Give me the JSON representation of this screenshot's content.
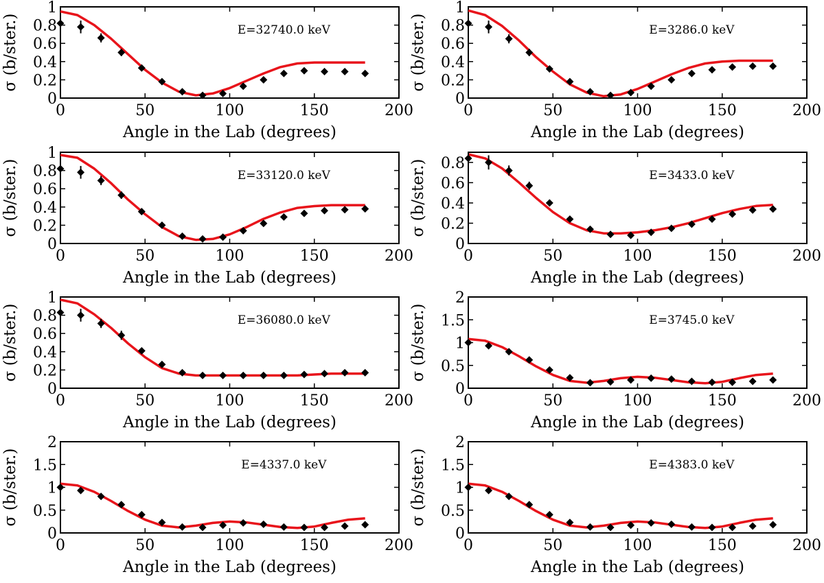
{
  "chart_data": [
    {
      "type": "scatter",
      "title": "E=32740.0 keV",
      "xlabel": "Angle in the Lab (degrees)",
      "ylabel": "σ (b/ster.)",
      "xlim": [
        0,
        200
      ],
      "ylim": [
        0,
        1
      ],
      "xticks": [
        0,
        50,
        100,
        150,
        200
      ],
      "yticks": [
        0,
        0.2,
        0.4,
        0.6,
        0.8,
        1
      ],
      "ytick_labels": [
        "0",
        "0.2",
        "0.4",
        "0.6",
        "0.8",
        "1"
      ],
      "series": [
        {
          "name": "data",
          "x": [
            0,
            12,
            24,
            36,
            48,
            60,
            72,
            84,
            96,
            108,
            120,
            132,
            144,
            156,
            168,
            180
          ],
          "y": [
            0.82,
            0.78,
            0.66,
            0.5,
            0.33,
            0.18,
            0.07,
            0.03,
            0.05,
            0.13,
            0.2,
            0.27,
            0.3,
            0.29,
            0.29,
            0.27
          ],
          "err": [
            0.05,
            0.07,
            0.05,
            0.04,
            0.02,
            0.02,
            0.01,
            0.01,
            0.01,
            0.01,
            0.01,
            0.02,
            0.02,
            0.02,
            0.02,
            0.02
          ]
        },
        {
          "name": "fit",
          "x": [
            0,
            10,
            20,
            30,
            40,
            50,
            60,
            70,
            80,
            90,
            100,
            110,
            120,
            130,
            140,
            150,
            160,
            170,
            180
          ],
          "y": [
            0.95,
            0.91,
            0.8,
            0.65,
            0.48,
            0.31,
            0.17,
            0.07,
            0.03,
            0.05,
            0.11,
            0.19,
            0.27,
            0.34,
            0.38,
            0.39,
            0.39,
            0.39,
            0.39
          ]
        }
      ]
    },
    {
      "type": "scatter",
      "title": "E=3286.0 keV",
      "xlabel": "Angle in the Lab (degrees)",
      "ylabel": "σ (b/ster.)",
      "xlim": [
        0,
        200
      ],
      "ylim": [
        0,
        1
      ],
      "xticks": [
        0,
        50,
        100,
        150,
        200
      ],
      "yticks": [
        0,
        0.2,
        0.4,
        0.6,
        0.8,
        1
      ],
      "ytick_labels": [
        "0",
        "0.2",
        "0.4",
        "0.6",
        "0.8",
        "1"
      ],
      "series": [
        {
          "name": "data",
          "x": [
            0,
            12,
            24,
            36,
            48,
            60,
            72,
            84,
            96,
            108,
            120,
            132,
            144,
            156,
            168,
            180
          ],
          "y": [
            0.82,
            0.78,
            0.65,
            0.5,
            0.32,
            0.18,
            0.07,
            0.03,
            0.06,
            0.13,
            0.2,
            0.27,
            0.31,
            0.34,
            0.35,
            0.35
          ],
          "err": [
            0.05,
            0.07,
            0.05,
            0.04,
            0.02,
            0.02,
            0.01,
            0.01,
            0.01,
            0.01,
            0.01,
            0.02,
            0.02,
            0.02,
            0.02,
            0.02
          ]
        },
        {
          "name": "fit",
          "x": [
            0,
            10,
            20,
            30,
            40,
            50,
            60,
            70,
            80,
            90,
            100,
            110,
            120,
            130,
            140,
            150,
            160,
            170,
            180
          ],
          "y": [
            0.96,
            0.91,
            0.79,
            0.63,
            0.45,
            0.29,
            0.15,
            0.06,
            0.02,
            0.04,
            0.1,
            0.18,
            0.26,
            0.33,
            0.38,
            0.4,
            0.41,
            0.41,
            0.41
          ]
        }
      ]
    },
    {
      "type": "scatter",
      "title": "E=33120.0 keV",
      "xlabel": "Angle in the Lab (degrees)",
      "ylabel": "σ (b/ster.)",
      "xlim": [
        0,
        200
      ],
      "ylim": [
        0,
        1
      ],
      "xticks": [
        0,
        50,
        100,
        150,
        200
      ],
      "yticks": [
        0,
        0.2,
        0.4,
        0.6,
        0.8,
        1
      ],
      "ytick_labels": [
        "0",
        "0.2",
        "0.4",
        "0.6",
        "0.8",
        "1"
      ],
      "series": [
        {
          "name": "data",
          "x": [
            0,
            12,
            24,
            36,
            48,
            60,
            72,
            84,
            96,
            108,
            120,
            132,
            144,
            156,
            168,
            180
          ],
          "y": [
            0.82,
            0.78,
            0.69,
            0.53,
            0.35,
            0.2,
            0.08,
            0.05,
            0.07,
            0.14,
            0.22,
            0.29,
            0.33,
            0.36,
            0.37,
            0.38
          ],
          "err": [
            0.05,
            0.07,
            0.05,
            0.04,
            0.02,
            0.02,
            0.01,
            0.01,
            0.01,
            0.01,
            0.01,
            0.02,
            0.02,
            0.02,
            0.02,
            0.02
          ]
        },
        {
          "name": "fit",
          "x": [
            0,
            10,
            20,
            30,
            40,
            50,
            60,
            70,
            80,
            90,
            100,
            110,
            120,
            130,
            140,
            150,
            160,
            170,
            180
          ],
          "y": [
            0.97,
            0.94,
            0.82,
            0.66,
            0.48,
            0.32,
            0.18,
            0.08,
            0.04,
            0.05,
            0.1,
            0.18,
            0.27,
            0.34,
            0.39,
            0.41,
            0.42,
            0.42,
            0.42
          ]
        }
      ]
    },
    {
      "type": "scatter",
      "title": "E=3433.0 keV",
      "xlabel": "Angle in the Lab (degrees)",
      "ylabel": "σ (b/ster.)",
      "xlim": [
        0,
        200
      ],
      "ylim": [
        0,
        0.9
      ],
      "xticks": [
        0,
        50,
        100,
        150,
        200
      ],
      "yticks": [
        0,
        0.2,
        0.4,
        0.6,
        0.8
      ],
      "ytick_labels": [
        "0",
        "0.2",
        "0.4",
        "0.6",
        "0.8"
      ],
      "series": [
        {
          "name": "data",
          "x": [
            0,
            12,
            24,
            36,
            48,
            60,
            72,
            84,
            96,
            108,
            120,
            132,
            144,
            156,
            168,
            180
          ],
          "y": [
            0.84,
            0.8,
            0.72,
            0.57,
            0.4,
            0.24,
            0.14,
            0.09,
            0.08,
            0.11,
            0.15,
            0.19,
            0.24,
            0.29,
            0.33,
            0.34
          ],
          "err": [
            0.05,
            0.07,
            0.05,
            0.04,
            0.03,
            0.02,
            0.01,
            0.01,
            0.01,
            0.01,
            0.01,
            0.02,
            0.02,
            0.02,
            0.02,
            0.02
          ]
        },
        {
          "name": "fit",
          "x": [
            0,
            10,
            20,
            30,
            40,
            50,
            60,
            70,
            80,
            90,
            100,
            110,
            120,
            130,
            140,
            150,
            160,
            170,
            180
          ],
          "y": [
            0.88,
            0.84,
            0.74,
            0.6,
            0.45,
            0.31,
            0.2,
            0.13,
            0.1,
            0.1,
            0.11,
            0.13,
            0.16,
            0.2,
            0.25,
            0.3,
            0.34,
            0.37,
            0.38
          ]
        }
      ]
    },
    {
      "type": "scatter",
      "title": "E=36080.0 keV",
      "xlabel": "Angle in the Lab (degrees)",
      "ylabel": "σ (b/ster.)",
      "xlim": [
        0,
        200
      ],
      "ylim": [
        0,
        1
      ],
      "xticks": [
        0,
        50,
        100,
        150,
        200
      ],
      "yticks": [
        0,
        0.2,
        0.4,
        0.6,
        0.8,
        1
      ],
      "ytick_labels": [
        "0",
        "0.2",
        "0.4",
        "0.6",
        "0.8",
        "1"
      ],
      "series": [
        {
          "name": "data",
          "x": [
            0,
            12,
            24,
            36,
            48,
            60,
            72,
            84,
            96,
            108,
            120,
            132,
            144,
            156,
            168,
            180
          ],
          "y": [
            0.83,
            0.8,
            0.71,
            0.58,
            0.41,
            0.26,
            0.17,
            0.14,
            0.14,
            0.14,
            0.14,
            0.14,
            0.15,
            0.16,
            0.17,
            0.17
          ],
          "err": [
            0.05,
            0.07,
            0.05,
            0.05,
            0.02,
            0.02,
            0.01,
            0.01,
            0.01,
            0.01,
            0.01,
            0.01,
            0.01,
            0.01,
            0.01,
            0.01
          ]
        },
        {
          "name": "fit",
          "x": [
            0,
            10,
            20,
            30,
            40,
            50,
            60,
            70,
            80,
            90,
            100,
            110,
            120,
            130,
            140,
            150,
            160,
            170,
            180
          ],
          "y": [
            0.97,
            0.93,
            0.81,
            0.66,
            0.49,
            0.34,
            0.22,
            0.16,
            0.14,
            0.14,
            0.14,
            0.14,
            0.14,
            0.14,
            0.14,
            0.15,
            0.16,
            0.16,
            0.16
          ]
        }
      ]
    },
    {
      "type": "scatter",
      "title": "E=3745.0 keV",
      "xlabel": "Angle in the Lab (degrees)",
      "ylabel": "σ (b/ster.)",
      "xlim": [
        0,
        200
      ],
      "ylim": [
        0,
        2
      ],
      "xticks": [
        0,
        50,
        100,
        150,
        200
      ],
      "yticks": [
        0,
        0.5,
        1,
        1.5,
        2
      ],
      "ytick_labels": [
        "0",
        "0.5",
        "1",
        "1.5",
        "2"
      ],
      "series": [
        {
          "name": "data",
          "x": [
            0,
            12,
            24,
            36,
            48,
            60,
            72,
            84,
            96,
            108,
            120,
            132,
            144,
            156,
            168,
            180
          ],
          "y": [
            1.0,
            0.93,
            0.8,
            0.62,
            0.4,
            0.23,
            0.12,
            0.14,
            0.18,
            0.22,
            0.2,
            0.15,
            0.13,
            0.13,
            0.15,
            0.18
          ],
          "err": [
            0.04,
            0.06,
            0.05,
            0.04,
            0.03,
            0.02,
            0.01,
            0.01,
            0.01,
            0.01,
            0.01,
            0.01,
            0.01,
            0.01,
            0.01,
            0.01
          ]
        },
        {
          "name": "fit",
          "x": [
            0,
            10,
            20,
            30,
            40,
            50,
            60,
            70,
            80,
            90,
            100,
            110,
            120,
            130,
            140,
            150,
            160,
            170,
            180
          ],
          "y": [
            1.08,
            1.04,
            0.9,
            0.7,
            0.48,
            0.29,
            0.16,
            0.12,
            0.16,
            0.22,
            0.25,
            0.23,
            0.18,
            0.13,
            0.11,
            0.14,
            0.22,
            0.29,
            0.32
          ]
        }
      ]
    },
    {
      "type": "scatter",
      "title": "E=4337.0 keV",
      "xlabel": "Angle in the Lab (degrees)",
      "ylabel": "σ (b/ster.)",
      "xlim": [
        0,
        200
      ],
      "ylim": [
        0,
        2
      ],
      "xticks": [
        0,
        50,
        100,
        150,
        200
      ],
      "yticks": [
        0,
        0.5,
        1,
        1.5,
        2
      ],
      "ytick_labels": [
        "0",
        "0.5",
        "1",
        "1.5",
        "2"
      ],
      "series": [
        {
          "name": "data",
          "x": [
            0,
            12,
            24,
            36,
            48,
            60,
            72,
            84,
            96,
            108,
            120,
            132,
            144,
            156,
            168,
            180
          ],
          "y": [
            1.0,
            0.93,
            0.8,
            0.62,
            0.4,
            0.23,
            0.13,
            0.12,
            0.17,
            0.22,
            0.19,
            0.13,
            0.12,
            0.12,
            0.15,
            0.18
          ],
          "err": [
            0.04,
            0.06,
            0.05,
            0.04,
            0.03,
            0.02,
            0.01,
            0.01,
            0.01,
            0.01,
            0.01,
            0.01,
            0.01,
            0.01,
            0.01,
            0.01
          ]
        },
        {
          "name": "fit",
          "x": [
            0,
            10,
            20,
            30,
            40,
            50,
            60,
            70,
            80,
            90,
            100,
            110,
            120,
            130,
            140,
            150,
            160,
            170,
            180
          ],
          "y": [
            1.08,
            1.04,
            0.9,
            0.7,
            0.48,
            0.29,
            0.16,
            0.12,
            0.16,
            0.22,
            0.25,
            0.23,
            0.18,
            0.13,
            0.11,
            0.14,
            0.22,
            0.29,
            0.32
          ]
        }
      ]
    },
    {
      "type": "scatter",
      "title": "E=4383.0 keV",
      "xlabel": "Angle in the Lab (degrees)",
      "ylabel": "σ (b/ster.)",
      "xlim": [
        0,
        200
      ],
      "ylim": [
        0,
        2
      ],
      "xticks": [
        0,
        50,
        100,
        150,
        200
      ],
      "yticks": [
        0,
        0.5,
        1,
        1.5,
        2
      ],
      "ytick_labels": [
        "0",
        "0.5",
        "1",
        "1.5",
        "2"
      ],
      "series": [
        {
          "name": "data",
          "x": [
            0,
            12,
            24,
            36,
            48,
            60,
            72,
            84,
            96,
            108,
            120,
            132,
            144,
            156,
            168,
            180
          ],
          "y": [
            1.0,
            0.93,
            0.8,
            0.62,
            0.4,
            0.23,
            0.13,
            0.12,
            0.17,
            0.22,
            0.19,
            0.13,
            0.12,
            0.12,
            0.15,
            0.18
          ],
          "err": [
            0.04,
            0.06,
            0.05,
            0.04,
            0.03,
            0.02,
            0.01,
            0.01,
            0.01,
            0.01,
            0.01,
            0.01,
            0.01,
            0.01,
            0.01,
            0.01
          ]
        },
        {
          "name": "fit",
          "x": [
            0,
            10,
            20,
            30,
            40,
            50,
            60,
            70,
            80,
            90,
            100,
            110,
            120,
            130,
            140,
            150,
            160,
            170,
            180
          ],
          "y": [
            1.08,
            1.04,
            0.9,
            0.7,
            0.48,
            0.29,
            0.16,
            0.12,
            0.16,
            0.22,
            0.25,
            0.23,
            0.18,
            0.13,
            0.11,
            0.14,
            0.22,
            0.29,
            0.32
          ]
        }
      ]
    }
  ],
  "colors": {
    "fit_line": "#e8141b",
    "markers": "#000000",
    "axes": "#000000",
    "background": "#ffffff"
  }
}
